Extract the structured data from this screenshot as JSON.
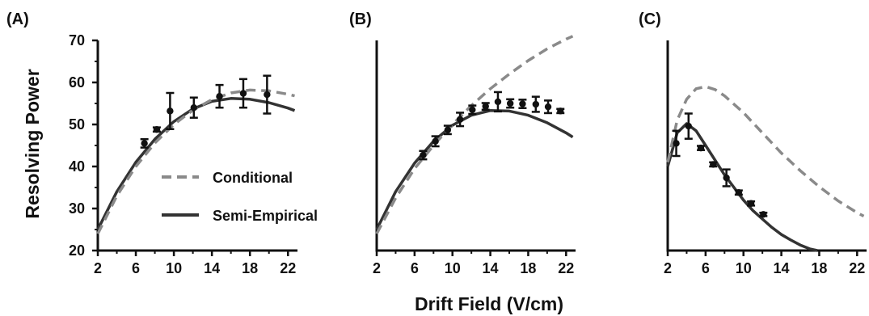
{
  "chart_data": {
    "shared": {
      "xlabel": "Drift Field (V/cm)",
      "ylabel": "Resolving Power",
      "x_ticks": [
        2,
        6,
        10,
        14,
        18,
        22
      ],
      "y_ticks": [
        20,
        30,
        40,
        50,
        60,
        70
      ],
      "xlim": [
        2,
        23
      ],
      "ylim": [
        20,
        70
      ],
      "colors": {
        "conditional": "#8a8a8a",
        "semi_empirical": "#333333",
        "measured": "#111111"
      },
      "legend": [
        {
          "key": "conditional",
          "name": "Conditional",
          "style": "dashed"
        },
        {
          "key": "semi_empirical",
          "name": "Semi-Empirical",
          "style": "solid"
        }
      ]
    },
    "panels": [
      {
        "label": "(A)",
        "type": "line",
        "show_y_tick_labels": true,
        "series": {
          "conditional": {
            "x": [
              2,
              4,
              6,
              8,
              10,
              12,
              14,
              16,
              18,
              20,
              22,
              22.7
            ],
            "y": [
              24.0,
              33.0,
              40.0,
              45.6,
              50.0,
              53.4,
              55.9,
              57.5,
              58.2,
              58.0,
              57.2,
              56.8
            ]
          },
          "semi_empirical": {
            "x": [
              2,
              4,
              6,
              8,
              10,
              12,
              14,
              16,
              18,
              20,
              22,
              22.7
            ],
            "y": [
              25.0,
              34.0,
              41.0,
              46.5,
              50.7,
              53.7,
              55.5,
              56.2,
              56.0,
              55.2,
              53.9,
              53.3
            ]
          },
          "measured": [
            {
              "x": 6.9,
              "y": 45.5,
              "err": 1.0
            },
            {
              "x": 8.2,
              "y": 48.8,
              "err": 0.5
            },
            {
              "x": 9.6,
              "y": 53.2,
              "err": 4.3
            },
            {
              "x": 12.1,
              "y": 54.0,
              "err": 2.4
            },
            {
              "x": 14.8,
              "y": 56.7,
              "err": 2.7
            },
            {
              "x": 17.3,
              "y": 57.4,
              "err": 3.4
            },
            {
              "x": 19.8,
              "y": 57.1,
              "err": 4.5
            }
          ]
        },
        "show_legend": true
      },
      {
        "label": "(B)",
        "type": "line",
        "show_y_tick_labels": false,
        "series": {
          "conditional": {
            "x": [
              2,
              4,
              6,
              8,
              10,
              12,
              14,
              16,
              18,
              20,
              22,
              22.7
            ],
            "y": [
              24.0,
              32.5,
              39.5,
              45.0,
              50.0,
              54.5,
              58.5,
              62.0,
              65.2,
              68.0,
              70.3,
              71.0
            ]
          },
          "semi_empirical": {
            "x": [
              2,
              4,
              6,
              8,
              10,
              12,
              14,
              16,
              18,
              20,
              22,
              22.7
            ],
            "y": [
              25.0,
              34.0,
              40.8,
              46.0,
              49.8,
              52.2,
              53.3,
              53.2,
              52.2,
              50.4,
              48.0,
              47.0
            ]
          },
          "measured": [
            {
              "x": 6.9,
              "y": 42.7,
              "err": 1.0
            },
            {
              "x": 8.2,
              "y": 46.0,
              "err": 1.2
            },
            {
              "x": 9.5,
              "y": 48.7,
              "err": 1.0
            },
            {
              "x": 10.8,
              "y": 51.2,
              "err": 1.6
            },
            {
              "x": 12.1,
              "y": 53.5,
              "err": 1.0
            },
            {
              "x": 13.5,
              "y": 54.3,
              "err": 0.8
            },
            {
              "x": 14.8,
              "y": 55.4,
              "err": 2.3
            },
            {
              "x": 16.1,
              "y": 55.0,
              "err": 1.0
            },
            {
              "x": 17.4,
              "y": 54.9,
              "err": 1.0
            },
            {
              "x": 18.8,
              "y": 54.8,
              "err": 1.8
            },
            {
              "x": 20.1,
              "y": 54.2,
              "err": 1.5
            },
            {
              "x": 21.4,
              "y": 53.2,
              "err": 0.5
            }
          ]
        },
        "show_legend": false
      },
      {
        "label": "(C)",
        "type": "line",
        "show_y_tick_labels": false,
        "series": {
          "conditional": {
            "x": [
              2,
              3,
              4,
              5,
              6,
              7,
              8,
              10,
              12,
              14,
              16,
              18,
              20,
              22,
              22.7
            ],
            "y": [
              41.0,
              51.0,
              56.0,
              58.5,
              59.0,
              58.3,
              56.8,
              52.8,
              48.0,
              43.2,
              39.0,
              35.2,
              31.8,
              29.0,
              28.2
            ]
          },
          "semi_empirical": {
            "x": [
              2,
              3,
              4,
              5,
              6,
              7,
              8,
              9,
              10,
              11,
              12,
              13,
              14,
              15,
              16,
              17,
              17.8
            ],
            "y": [
              40.0,
              48.0,
              50.2,
              48.5,
              45.0,
              41.5,
              38.0,
              35.0,
              32.0,
              29.5,
              27.5,
              25.5,
              23.8,
              22.5,
              21.3,
              20.4,
              20.0
            ]
          },
          "measured": [
            {
              "x": 2.9,
              "y": 45.5,
              "err": 3.0
            },
            {
              "x": 4.2,
              "y": 49.6,
              "err": 3.0
            },
            {
              "x": 5.5,
              "y": 44.4,
              "err": 0.5
            },
            {
              "x": 6.8,
              "y": 40.5,
              "err": 0.5
            },
            {
              "x": 8.2,
              "y": 37.3,
              "err": 2.0
            },
            {
              "x": 9.5,
              "y": 33.8,
              "err": 0.5
            },
            {
              "x": 10.8,
              "y": 31.2,
              "err": 0.5
            },
            {
              "x": 12.1,
              "y": 28.6,
              "err": 0.4
            }
          ]
        },
        "show_legend": false
      }
    ]
  }
}
